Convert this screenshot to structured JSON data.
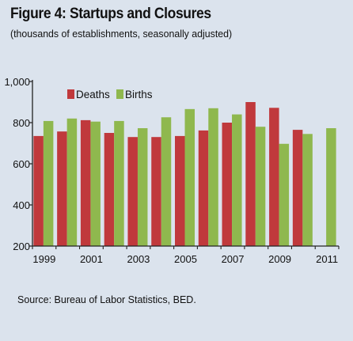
{
  "figure": {
    "title": "Figure 4: Startups and Closures",
    "subtitle": "(thousands of establishments, seasonally adjusted)",
    "source": "Source: Bureau of Labor Statistics,  BED."
  },
  "colors": {
    "background": "#dbe3ed",
    "deaths": "#c0393c",
    "births": "#8fb84e",
    "axis": "#222222"
  },
  "chart_data": {
    "type": "bar",
    "title": "",
    "xlabel": "",
    "ylabel": "",
    "ylim": [
      200,
      1000
    ],
    "yticks": [
      200,
      400,
      600,
      800,
      1000
    ],
    "ytick_labels": [
      "200",
      "400",
      "600",
      "800",
      "1,000"
    ],
    "categories": [
      "1999",
      "2000",
      "2001",
      "2002",
      "2003",
      "2004",
      "2005",
      "2006",
      "2007",
      "2008",
      "2009",
      "2010",
      "2011"
    ],
    "xtick_labels": [
      "1999",
      "",
      "2001",
      "",
      "2003",
      "",
      "2005",
      "",
      "2007",
      "",
      "2009",
      "",
      "2011"
    ],
    "legend_position": "top-left",
    "grid": false,
    "series": [
      {
        "name": "Deaths",
        "color": "#c0393c",
        "values": [
          735,
          757,
          812,
          750,
          730,
          730,
          735,
          762,
          800,
          900,
          872,
          765,
          null
        ]
      },
      {
        "name": "Births",
        "color": "#8fb84e",
        "values": [
          808,
          820,
          805,
          808,
          773,
          826,
          866,
          870,
          840,
          780,
          697,
          745,
          773
        ]
      }
    ]
  }
}
